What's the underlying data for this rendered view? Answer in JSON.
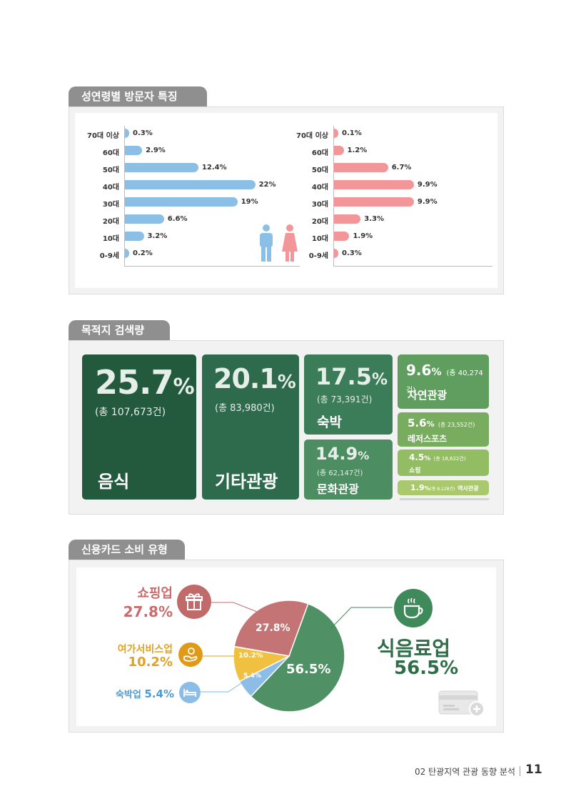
{
  "section1": {
    "title": "성연령별 방문자 특징",
    "ages": [
      "70대 이상",
      "60대",
      "50대",
      "40대",
      "30대",
      "20대",
      "10대",
      "0-9세"
    ],
    "male": [
      "0.3%",
      "2.9%",
      "12.4%",
      "22%",
      "19%",
      "6.6%",
      "3.2%",
      "0.2%"
    ],
    "female": [
      "0.1%",
      "1.2%",
      "6.7%",
      "9.9%",
      "9.9%",
      "3.3%",
      "1.9%",
      "0.3%"
    ],
    "male_values": [
      0.3,
      2.9,
      12.4,
      22,
      19,
      6.6,
      3.2,
      0.2
    ],
    "female_values": [
      0.1,
      1.2,
      6.7,
      9.9,
      9.9,
      3.3,
      1.9,
      0.3
    ],
    "male_color": "#8cbfe6",
    "female_color": "#f29699"
  },
  "section2": {
    "title": "목적지 검색량",
    "tiles": {
      "food": {
        "pct": "25.7",
        "unit": "%",
        "total": "(총 107,673건)",
        "label": "음식"
      },
      "other": {
        "pct": "20.1",
        "unit": "%",
        "total": "(총 83,980건)",
        "label": "기타관광"
      },
      "lodging": {
        "pct": "17.5",
        "unit": "%",
        "total": "(총 73,391건)",
        "label": "숙박"
      },
      "culture": {
        "pct": "14.9",
        "unit": "%",
        "total": "(총 62,147건)",
        "label": "문화관광"
      },
      "nature": {
        "pct": "9.6",
        "unit": "%",
        "total": "(총 40,274건)",
        "label": "자연관광"
      },
      "leisure": {
        "pct": "5.6",
        "unit": "%",
        "total": "(총 23,552건)",
        "label": "레저스포츠"
      },
      "shopping": {
        "pct": "4.5",
        "unit": "%",
        "total": "(총 18,622건)",
        "label": "쇼핑"
      },
      "history": {
        "pct": "1.9",
        "unit": "%",
        "total": "(총 8,128건)",
        "label": "역사관광"
      }
    }
  },
  "section3": {
    "title": "신용카드 소비 유형",
    "shopping": {
      "label": "쇼핑업",
      "pct": "27.8%",
      "color": "#c86d6d"
    },
    "leisure": {
      "label": "여가서비스업",
      "pct": "10.2%",
      "color": "#e0a21f"
    },
    "lodging": {
      "label": "숙박업",
      "pct": "5.4%",
      "color": "#4d9bd4"
    },
    "food": {
      "label": "식음료업",
      "pct": "56.5%",
      "color": "#3f8a5a"
    },
    "slice_labels": {
      "shopping": "27.8%",
      "leisure": "10.2%",
      "lodging": "5.4%",
      "food": "56.5%"
    }
  },
  "chart_data": {
    "type": "pie",
    "categories": [
      "식음료업",
      "쇼핑업",
      "여가서비스업",
      "숙박업"
    ],
    "values": [
      56.5,
      27.8,
      10.2,
      5.4
    ],
    "colors": [
      "#4f9065",
      "#c47474",
      "#f0c040",
      "#8cbde6"
    ]
  },
  "footer": {
    "text": "02 탄광지역 관광 동향 분석",
    "page": "11"
  }
}
